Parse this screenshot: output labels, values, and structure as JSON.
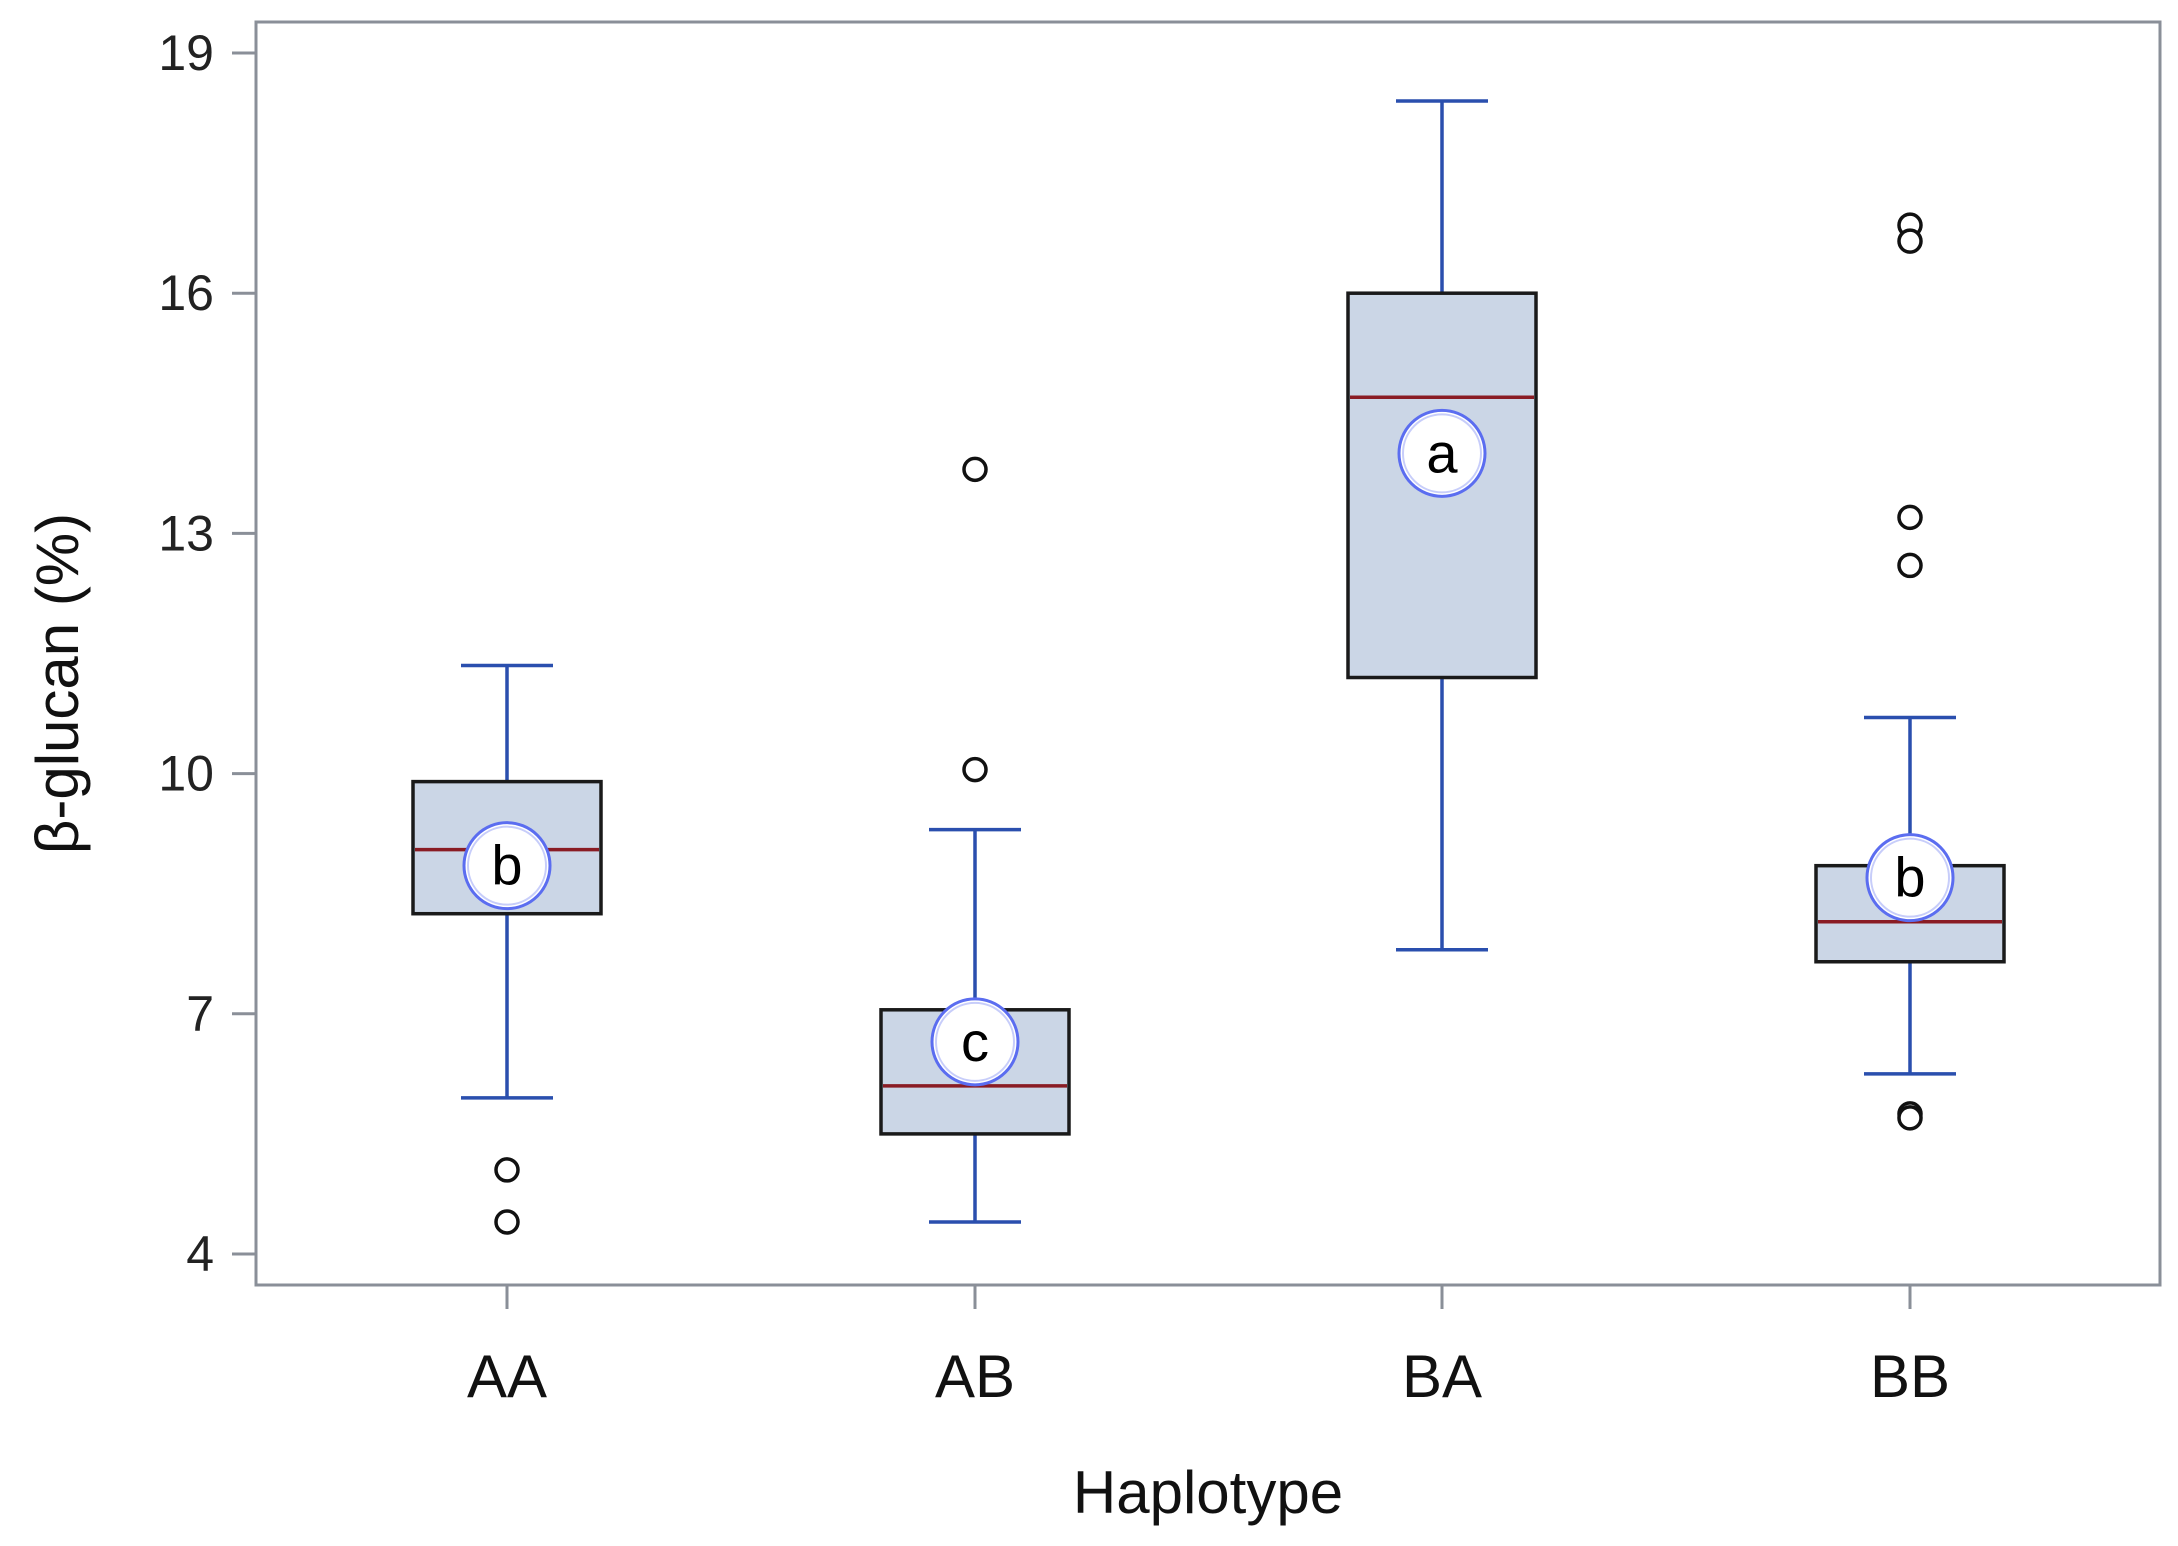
{
  "chart_data": {
    "type": "boxplot",
    "title": "",
    "xlabel": "Haplotype",
    "ylabel": "β-glucan (%)",
    "ylim": [
      3.6,
      19.4
    ],
    "yticks": [
      4,
      7,
      10,
      13,
      16,
      19
    ],
    "ytick_labels": [
      "4",
      "7",
      "10",
      "13",
      "16",
      "19"
    ],
    "categories": [
      "AA",
      "AB",
      "BA",
      "BB"
    ],
    "boxes": [
      {
        "category": "AA",
        "whisker_low": 5.95,
        "q1": 8.25,
        "median": 9.05,
        "q3": 9.9,
        "whisker_high": 11.35,
        "outliers": [
          5.05,
          4.4
        ],
        "letter": "b",
        "letter_y": 8.85
      },
      {
        "category": "AB",
        "whisker_low": 4.4,
        "q1": 5.5,
        "median": 6.1,
        "q3": 7.05,
        "whisker_high": 9.3,
        "outliers": [
          13.8,
          10.05
        ],
        "letter": "c",
        "letter_y": 6.65
      },
      {
        "category": "BA",
        "whisker_low": 7.8,
        "q1": 11.2,
        "median": 14.7,
        "q3": 16.0,
        "whisker_high": 18.4,
        "outliers": [],
        "letter": "a",
        "letter_y": 14.0
      },
      {
        "category": "BB",
        "whisker_low": 6.25,
        "q1": 7.65,
        "median": 8.15,
        "q3": 8.85,
        "whisker_high": 10.7,
        "outliers": [
          16.85,
          16.65,
          13.2,
          12.6,
          5.75,
          5.7
        ],
        "letter": "b",
        "letter_y": 8.7
      }
    ],
    "colors": {
      "box_fill": "#cbd6e6",
      "box_edge": "#1a1a1a",
      "whisker": "#2a4fae",
      "median": "#8a1c24",
      "outlier": "#111111",
      "letter_ring": "#5b6df0",
      "frame": "#8a8f98"
    }
  }
}
